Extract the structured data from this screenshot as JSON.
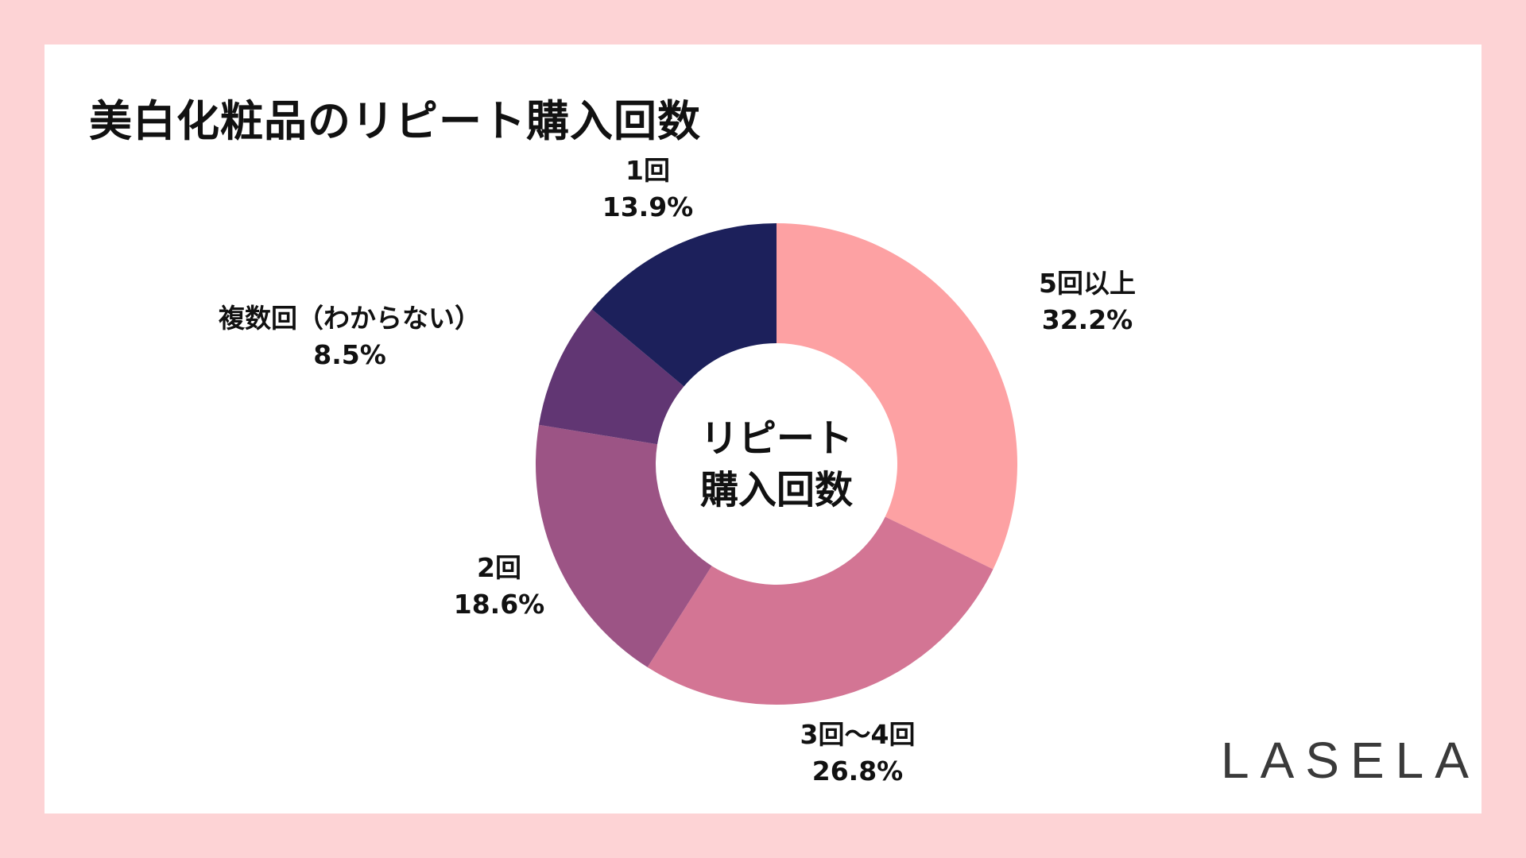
{
  "chart_data": {
    "type": "pie",
    "title": "美白化粧品のリピート購入回数",
    "center_label": [
      "リピート",
      "購入回数"
    ],
    "slices": [
      {
        "label": "5回以上",
        "value": 32.2,
        "display": "32.2%",
        "color": "#fda1a3"
      },
      {
        "label": "3回〜4回",
        "value": 26.8,
        "display": "26.8%",
        "color": "#d37594"
      },
      {
        "label": "2回",
        "value": 18.6,
        "display": "18.6%",
        "color": "#9c5485"
      },
      {
        "label": "複数回（わからない）",
        "value": 8.5,
        "display": "8.5%",
        "color": "#613673"
      },
      {
        "label": "1回",
        "value": 13.9,
        "display": "13.9%",
        "color": "#1c205b"
      }
    ]
  },
  "logo": "LASELA"
}
